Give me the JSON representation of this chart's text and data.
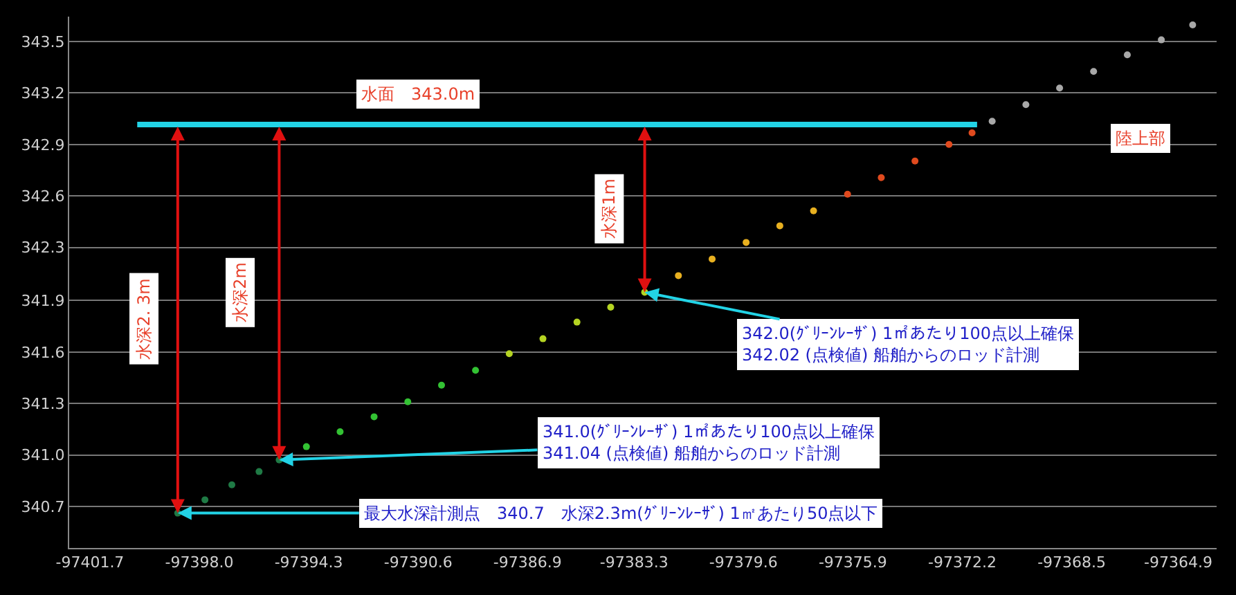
{
  "chart_data": {
    "type": "scatter",
    "xlim": [
      -97402.4,
      -97363.6
    ],
    "ylim": [
      340.45,
      343.65
    ],
    "xticks": [
      {
        "value": -97401.7,
        "label": "-97401.7"
      },
      {
        "value": -97398.0,
        "label": "-97398.0"
      },
      -97394.3,
      -97390.6,
      -97386.9,
      -97383.3,
      -97379.6,
      -97375.9,
      -97372.2,
      -97368.5,
      -97364.9
    ],
    "yticks": [
      340.7,
      {
        "value": 341.01,
        "label": "341.0"
      },
      {
        "value": 341.32,
        "label": "341.3"
      },
      {
        "value": 341.63,
        "label": "341.6"
      },
      {
        "value": 341.94,
        "label": "341.9"
      },
      {
        "value": 342.26,
        "label": "342.3"
      },
      {
        "value": 342.57,
        "label": "342.6"
      },
      {
        "value": 342.88,
        "label": "342.9"
      },
      {
        "value": 343.19,
        "label": "343.2"
      },
      343.5
    ],
    "grid": "y",
    "marker": "circle",
    "series": [
      {
        "color": "#1f7a45",
        "x": [
          -97398.73,
          -97397.81,
          -97396.9,
          -97395.98,
          -97395.3
        ],
        "values": [
          340.66,
          340.74,
          340.83,
          340.91,
          340.98
        ]
      },
      {
        "color": "#33c233",
        "x": [
          -97394.38,
          -97393.24,
          -97392.09,
          -97390.95,
          -97389.81,
          -97388.66
        ],
        "values": [
          341.06,
          341.15,
          341.24,
          341.33,
          341.43,
          341.52
        ]
      },
      {
        "color": "#b5d422",
        "x": [
          -97387.52,
          -97386.38,
          -97385.23,
          -97384.09,
          -97382.94
        ],
        "values": [
          341.62,
          341.71,
          341.81,
          341.9,
          341.99
        ]
      },
      {
        "color": "#e8b020",
        "x": [
          -97381.8,
          -97380.66,
          -97379.51,
          -97378.37,
          -97377.23
        ],
        "values": [
          342.09,
          342.19,
          342.29,
          342.39,
          342.48
        ]
      },
      {
        "color": "#e04a1e",
        "x": [
          -97376.08,
          -97374.94,
          -97373.8,
          -97372.65,
          -97371.87
        ],
        "values": [
          342.58,
          342.68,
          342.78,
          342.88,
          342.95
        ]
      },
      {
        "color": "#a8a8a8",
        "x": [
          -97371.19,
          -97370.05,
          -97368.91,
          -97367.76,
          -97366.62,
          -97365.47,
          -97364.41
        ],
        "values": [
          343.02,
          343.12,
          343.22,
          343.32,
          343.42,
          343.51,
          343.6
        ]
      },
      {
        "type": "line",
        "marker": "none",
        "color": "#22d3e6",
        "x": [
          -97400.1,
          -97371.7
        ],
        "values": [
          343.0,
          343.0
        ]
      }
    ],
    "annotations": [
      {
        "text": "水面　343.0m",
        "x": -97390.6,
        "y": 343.0
      },
      "陸上部",
      "水深2. 3m",
      "水深2m",
      "水深1m",
      {
        "text": "342.0(ｸﾞﾘｰﾝﾚｰｻﾞ) 1㎡あたり100点以上確保\n342.02 (点検値) 船舶からのロッド計測",
        "x": -97382.94,
        "y": 341.99
      },
      {
        "text": "341.0(ｸﾞﾘｰﾝﾚｰｻﾞ) 1㎡あたり100点以上確保\n341.04 (点検値) 船舶からのロッド計測",
        "x": -97395.3,
        "y": 340.98
      },
      {
        "text": "最大水深計測点　340.7　水深2.3m(ｸﾞﾘｰﾝﾚｰｻﾞ) 1㎡あたり50点以下",
        "x": -97398.73,
        "y": 340.66
      }
    ]
  }
}
